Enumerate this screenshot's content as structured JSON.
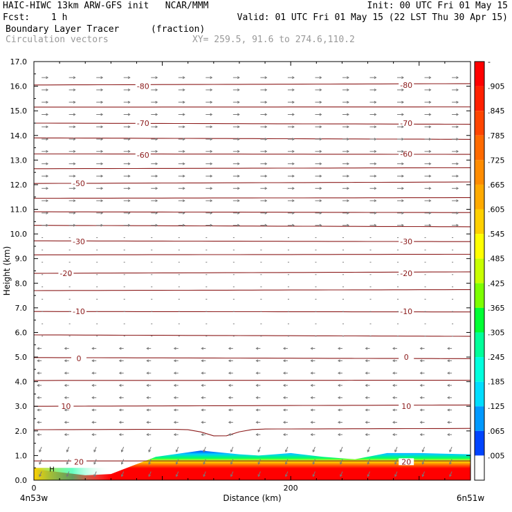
{
  "header": {
    "title_left": "HAIC-HIWC 13km ARW-GFS init   NCAR/MMM",
    "init": "Init: 00 UTC Fri 01 May 15",
    "fcst_label": "Fcst:",
    "fcst_value": "1 h",
    "valid": "Valid: 01 UTC Fri 01 May 15 (22 LST Thu 30 Apr 15)",
    "field": "Boundary Layer Tracer",
    "field_units": "(fraction)",
    "vectors": "Circulation vectors",
    "xy": "XY= 259.5, 91.6 to 274.6,110.2"
  },
  "chart_data": {
    "type": "heatmap",
    "ylabel": "Height (km)",
    "xlabel": "Distance (km)",
    "ylim": [
      0,
      17
    ],
    "xlim": [
      0,
      340
    ],
    "yticks": [
      "0.0",
      "1.0",
      "2.0",
      "3.0",
      "4.0",
      "5.0",
      "6.0",
      "7.0",
      "8.0",
      "9.0",
      "10.0",
      "11.0",
      "12.0",
      "13.0",
      "14.0",
      "15.0",
      "16.0",
      "17.0"
    ],
    "xticks": [
      {
        "x": 0,
        "label": "0"
      },
      {
        "x": 200,
        "label": "200"
      }
    ],
    "endpoints": {
      "left": "4n53w",
      "right": "6n51w"
    },
    "contour_labels": [
      {
        "x": 85,
        "y": 16.0,
        "label": "-80"
      },
      {
        "x": 290,
        "y": 16.05,
        "label": "-80"
      },
      {
        "x": 85,
        "y": 14.5,
        "label": "-70"
      },
      {
        "x": 290,
        "y": 14.5,
        "label": "-70"
      },
      {
        "x": 85,
        "y": 13.2,
        "label": "-60"
      },
      {
        "x": 290,
        "y": 13.25,
        "label": "-60"
      },
      {
        "x": 35,
        "y": 12.05,
        "label": "-50"
      },
      {
        "x": 35,
        "y": 9.7,
        "label": "-30"
      },
      {
        "x": 290,
        "y": 9.7,
        "label": "-30"
      },
      {
        "x": 25,
        "y": 8.4,
        "label": "-20"
      },
      {
        "x": 290,
        "y": 8.4,
        "label": "-20"
      },
      {
        "x": 35,
        "y": 6.85,
        "label": "-10"
      },
      {
        "x": 290,
        "y": 6.85,
        "label": "-10"
      },
      {
        "x": 35,
        "y": 4.95,
        "label": "0"
      },
      {
        "x": 290,
        "y": 5.0,
        "label": "0"
      },
      {
        "x": 25,
        "y": 3.0,
        "label": "10"
      },
      {
        "x": 290,
        "y": 3.0,
        "label": "10"
      },
      {
        "x": 35,
        "y": 0.75,
        "label": "20"
      },
      {
        "x": 290,
        "y": 0.75,
        "label": "20"
      }
    ],
    "terrain_label": "H",
    "colorbar": {
      "labels": [
        "-",
        ".905",
        ".845",
        ".785",
        ".725",
        ".665",
        ".605",
        ".545",
        ".485",
        ".425",
        ".365",
        ".305",
        ".245",
        ".185",
        ".125",
        ".065",
        ".005"
      ],
      "colors": [
        "#ff0000",
        "#ff2000",
        "#ff4500",
        "#ff6a00",
        "#ff8c00",
        "#ffaa00",
        "#ffd000",
        "#ffff00",
        "#c8ff00",
        "#7cff00",
        "#00ff33",
        "#00ff99",
        "#00ffdd",
        "#00ddff",
        "#0099ff",
        "#0044ff",
        "#ffffff"
      ]
    },
    "tracer_top_km": [
      {
        "x": 0,
        "h": 0.45
      },
      {
        "x": 40,
        "h": 0.2
      },
      {
        "x": 60,
        "h": 0.25
      },
      {
        "x": 75,
        "h": 0.55
      },
      {
        "x": 95,
        "h": 0.95
      },
      {
        "x": 130,
        "h": 1.2
      },
      {
        "x": 160,
        "h": 1.05
      },
      {
        "x": 175,
        "h": 1.0
      },
      {
        "x": 200,
        "h": 1.1
      },
      {
        "x": 225,
        "h": 0.95
      },
      {
        "x": 250,
        "h": 0.85
      },
      {
        "x": 275,
        "h": 1.1
      },
      {
        "x": 300,
        "h": 1.1
      },
      {
        "x": 340,
        "h": 1.05
      }
    ]
  }
}
